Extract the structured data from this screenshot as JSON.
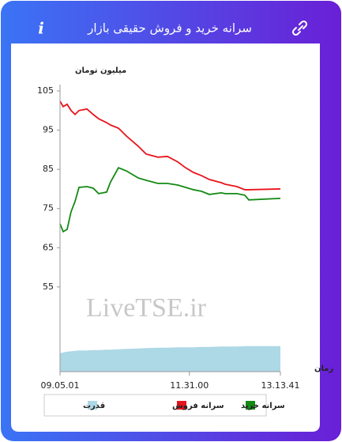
{
  "chart_data": {
    "type": "line",
    "title": "سرانه خرید و فروش حقیقی بازار",
    "ylabel": "میلیون تومان",
    "xlabel": "زمان",
    "watermark": "LiveTSE.ir",
    "x": [
      32701,
      32915,
      33182,
      33450,
      33717,
      33985,
      34519,
      34947,
      35321,
      35856,
      36124,
      36659,
      37194,
      37996,
      38530,
      39333,
      39975,
      40670,
      41205,
      41740,
      42274,
      42809,
      43611,
      43878,
      44681,
      45215,
      45483,
      47621
    ],
    "xlim": [
      32701,
      47621
    ],
    "xticks": [
      {
        "value": 32701,
        "label": "09.05.01"
      },
      {
        "value": 41460,
        "label": "11.31.00"
      },
      {
        "value": 47621,
        "label": "13.13.41"
      }
    ],
    "ylim": [
      33.4,
      105
    ],
    "yticks": [
      55,
      65,
      75,
      85,
      95,
      105
    ],
    "series": [
      {
        "name": "سرانه خرید",
        "color": "#138a13",
        "values": [
          71.1,
          69.1,
          69.7,
          74.2,
          76.8,
          80.4,
          80.6,
          80.2,
          78.8,
          79.2,
          81.8,
          85.4,
          84.6,
          82.8,
          82.2,
          81.4,
          81.4,
          81.0,
          80.4,
          79.8,
          79.4,
          78.6,
          79.0,
          78.8,
          78.8,
          78.4,
          77.2,
          77.6
        ]
      },
      {
        "name": "سرانه فروش",
        "color": "#e8141b",
        "values": [
          102.4,
          101,
          101.6,
          100,
          99,
          100,
          100.4,
          99,
          97.9,
          96.9,
          96.3,
          95.5,
          93.5,
          90.9,
          88.9,
          88.1,
          88.3,
          86.9,
          85.4,
          84.2,
          83.4,
          82.4,
          81.6,
          81.2,
          80.6,
          79.8,
          79.8,
          80.0
        ]
      },
      {
        "name": "قدرت",
        "color": "#add8e6",
        "type": "area",
        "values": [
          38.1,
          38.3,
          38.5,
          38.6,
          38.7,
          38.8,
          38.8,
          38.9,
          38.9,
          39.0,
          39.0,
          39.1,
          39.2,
          39.3,
          39.4,
          39.5,
          39.5,
          39.6,
          39.6,
          39.6,
          39.7,
          39.7,
          39.8,
          39.8,
          39.8,
          39.9,
          39.9,
          39.9
        ]
      }
    ]
  }
}
